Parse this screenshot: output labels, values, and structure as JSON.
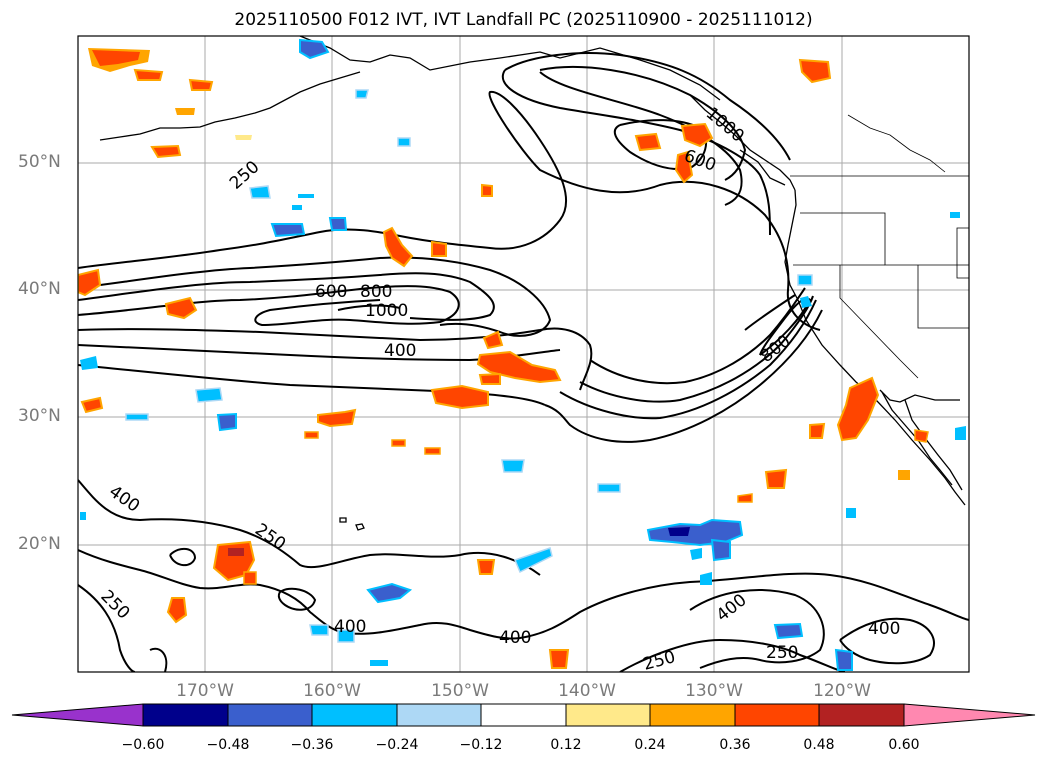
{
  "title": "2025110500 F012 IVT, IVT Landfall PC (2025110900 - 2025111012)",
  "latitude_labels": [
    "50°N",
    "40°N",
    "30°N",
    "20°N"
  ],
  "longitude_labels": [
    "170°W",
    "160°W",
    "150°W",
    "140°W",
    "130°W",
    "120°W"
  ],
  "contour_labels": [
    "250",
    "600",
    "800",
    "1000",
    "400",
    "400",
    "250",
    "250",
    "400",
    "400",
    "600",
    "800",
    "400",
    "250",
    "250",
    "400",
    "1000"
  ],
  "colorbar": {
    "ticks": [
      "−0.60",
      "−0.48",
      "−0.36",
      "−0.24",
      "−0.12",
      "0.12",
      "0.24",
      "0.36",
      "0.48",
      "0.60"
    ],
    "colors": [
      "#9932cc",
      "#00008b",
      "#3a5fcd",
      "#00bfff",
      "#add8f5",
      "#ffffff",
      "#ffe98a",
      "#ffa500",
      "#ff4500",
      "#b22222",
      "#ff88b0"
    ]
  },
  "map_colors": {
    "land_outline": "#000000",
    "grid": "#aaaaaa",
    "contour": "#000000",
    "lat_lon_text": "#7a7a7a"
  }
}
